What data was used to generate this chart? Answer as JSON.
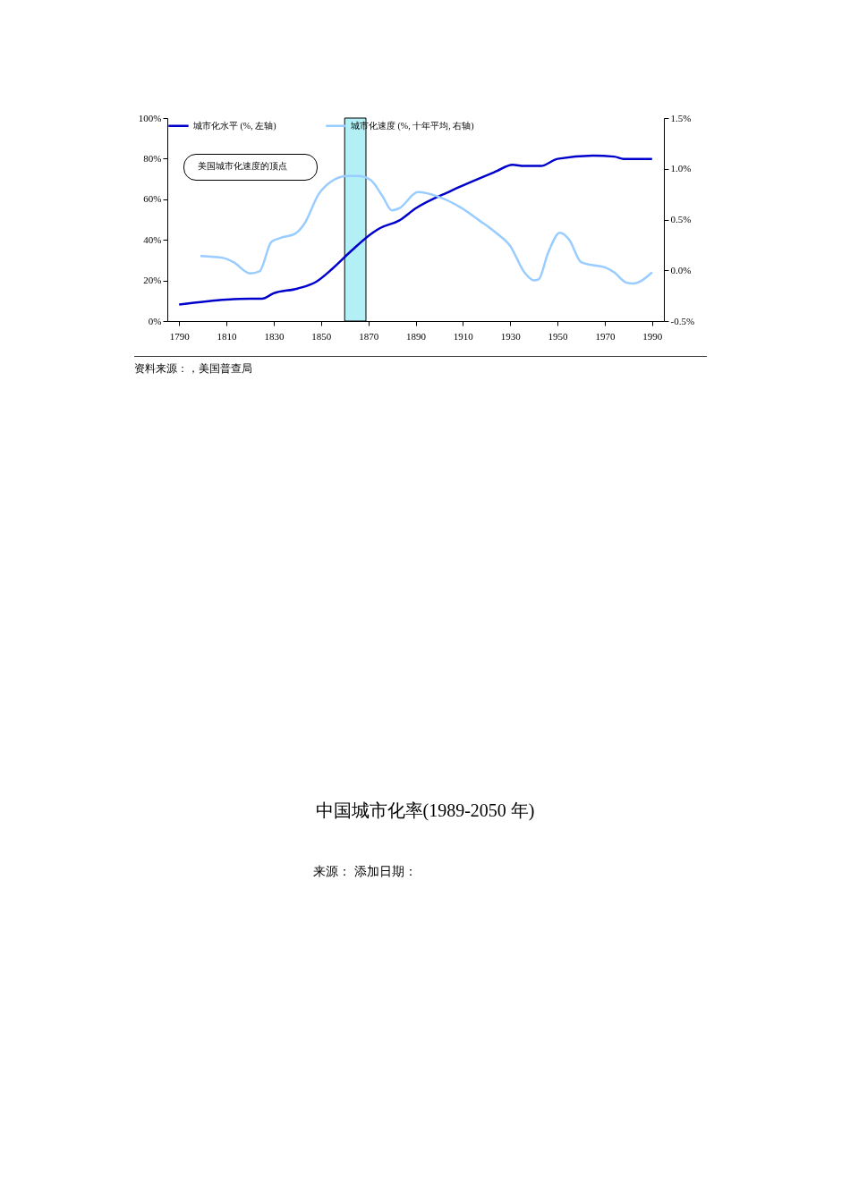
{
  "chart_data": {
    "type": "line",
    "xlim": [
      1785,
      1995
    ],
    "xticks": [
      1790,
      1810,
      1830,
      1850,
      1870,
      1890,
      1910,
      1930,
      1950,
      1970,
      1990
    ],
    "ylim": [
      0,
      100
    ],
    "yticks": [
      {
        "value": 0,
        "label": "0%"
      },
      {
        "value": 20,
        "label": "20%"
      },
      {
        "value": 40,
        "label": "40%"
      },
      {
        "value": 60,
        "label": "60%"
      },
      {
        "value": 80,
        "label": "80%"
      },
      {
        "value": 100,
        "label": "100%"
      }
    ],
    "y2lim": [
      -0.5,
      1.5
    ],
    "y2ticks": [
      {
        "value": -0.5,
        "label": "-0.5%"
      },
      {
        "value": 0,
        "label": "0.0%"
      },
      {
        "value": 0.5,
        "label": "0.5%"
      },
      {
        "value": 1,
        "label": "1.0%"
      },
      {
        "value": 1.5,
        "label": "1.5%"
      }
    ],
    "grid": false,
    "legend": "top",
    "line_style": "solid",
    "marker": "none",
    "series": [
      {
        "name": "城市化水平 (%, 左轴)",
        "color": "#0000cc",
        "x": [
          1790,
          1810,
          1820,
          1825,
          1830,
          1840,
          1848,
          1855,
          1863,
          1872,
          1875,
          1883,
          1890,
          1905,
          1924,
          1931,
          1936,
          1943,
          1950,
          1965,
          1974,
          1978,
          1990
        ],
        "values": [
          8.1,
          10.6,
          11,
          11,
          13.7,
          16,
          19.4,
          26,
          34.8,
          43.6,
          45.8,
          49.5,
          55.5,
          64.2,
          73.7,
          77,
          76.4,
          76.4,
          79.9,
          81.5,
          81,
          79.9,
          79.9
        ]
      },
      {
        "name": "城市化速度 (%, 十年平均, 右轴)",
        "color": "#99ccff",
        "axis": "y2",
        "x": [
          1799,
          1809,
          1813,
          1820,
          1824,
          1829,
          1833,
          1839,
          1843,
          1849,
          1854,
          1861,
          1866,
          1871,
          1876,
          1880,
          1883,
          1891,
          1899,
          1909,
          1917,
          1924,
          1930,
          1936,
          1940,
          1942,
          1946,
          1951,
          1955,
          1960,
          1965,
          1970,
          1974,
          1979,
          1982,
          1990
        ],
        "values": [
          0.14,
          0.12,
          0.08,
          -0.03,
          -0.01,
          0.28,
          0.32,
          0.36,
          0.46,
          0.75,
          0.87,
          0.93,
          0.93,
          0.89,
          0.73,
          0.59,
          0.61,
          0.77,
          0.73,
          0.62,
          0.49,
          0.37,
          0.24,
          -0.02,
          -0.1,
          -0.09,
          0.17,
          0.37,
          0.3,
          0.08,
          0.05,
          0.03,
          -0.02,
          -0.12,
          -0.13,
          -0.02
        ]
      }
    ],
    "bands": [
      {
        "axis": "x",
        "from": 1860,
        "to": 1869,
        "color": "#b3f0f5"
      }
    ],
    "annotations": [
      "美国城市化速度的顶点",
      "资料来源：，美国普查局",
      "中国城市化率(1989-2050 年)",
      "来源： 添加日期："
    ]
  }
}
